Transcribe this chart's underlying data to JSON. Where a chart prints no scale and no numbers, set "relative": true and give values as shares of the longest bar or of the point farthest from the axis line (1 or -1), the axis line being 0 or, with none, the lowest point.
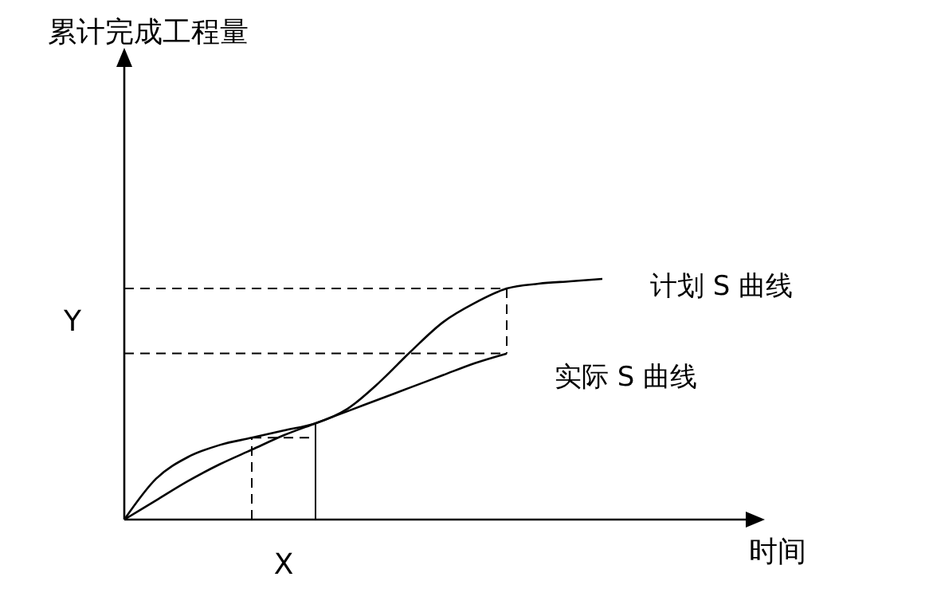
{
  "chart_data": {
    "type": "line",
    "title": "累计完成工程量",
    "xlabel": "时间",
    "relative": true,
    "legend": false,
    "marker": "none",
    "line_style": "solid",
    "categories": [
      null,
      null,
      null,
      null,
      null,
      null,
      null,
      null,
      null,
      null,
      null,
      null,
      null,
      null,
      null,
      null
    ],
    "series": [
      {
        "name": "计划 S 曲线",
        "color": "#000000",
        "values": [
          0,
          0.17,
          0.26,
          0.31,
          0.34,
          0.37,
          0.4,
          0.46,
          0.57,
          0.7,
          0.82,
          0.9,
          0.96,
          0.98,
          0.99,
          1
        ]
      },
      {
        "name": "实际 S 曲线",
        "color": "#000000",
        "values": [
          0,
          0.08,
          0.16,
          0.23,
          0.29,
          0.35,
          0.4,
          0.45,
          0.5,
          0.55,
          0.6,
          0.65,
          0.69,
          null,
          null,
          null
        ]
      },
      {
        "type": "line",
        "line_style": "dashed",
        "color": "#000000",
        "values": [
          0.96,
          0.96,
          0.96,
          0.96,
          0.96,
          0.96,
          0.96,
          0.96,
          0.96,
          0.96,
          0.96,
          0.96,
          0.96,
          null,
          null,
          null
        ]
      },
      {
        "type": "line",
        "line_style": "dashed",
        "color": "#000000",
        "values": [
          0.69,
          0.69,
          0.69,
          0.69,
          0.69,
          0.69,
          0.69,
          0.69,
          0.69,
          0.69,
          0.69,
          0.69,
          0.69,
          null,
          null,
          null
        ]
      },
      {
        "type": "line",
        "line_style": "dashed",
        "color": "#000000",
        "values": [
          null,
          null,
          null,
          null,
          0.34,
          0.34,
          0.34,
          null,
          null,
          null,
          null,
          null,
          null,
          null,
          null,
          null
        ]
      }
    ],
    "annotations": [
      "Y",
      "X"
    ]
  }
}
